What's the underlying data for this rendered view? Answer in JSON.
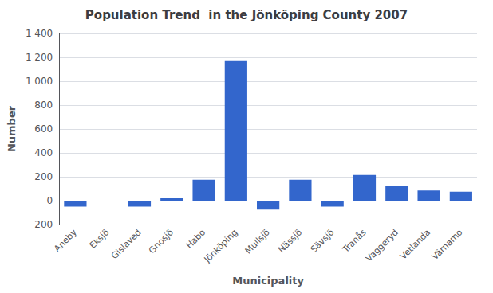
{
  "chart_data": {
    "type": "bar",
    "title": "Population Trend  in the Jönköping County 2007",
    "xlabel": "Municipality",
    "ylabel": "Number",
    "categories": [
      "Aneby",
      "Eksjö",
      "Gislaved",
      "Gnosjö",
      "Habo",
      "Jönköping",
      "Mullsjö",
      "Nässjö",
      "Sävsjö",
      "Tranås",
      "Vaggeryd",
      "Vetlanda",
      "Värnamo"
    ],
    "values": [
      -50,
      0,
      -50,
      20,
      175,
      1175,
      -75,
      175,
      -50,
      215,
      120,
      85,
      75
    ],
    "color": "#3366CC",
    "ylim": [
      -200,
      1400
    ],
    "yticks": [
      -200,
      0,
      200,
      400,
      600,
      800,
      {
        "value": 1000,
        "label": "1 000"
      },
      {
        "value": 1200,
        "label": "1 200"
      },
      {
        "value": 1400,
        "label": "1 400"
      }
    ],
    "grid": true
  }
}
